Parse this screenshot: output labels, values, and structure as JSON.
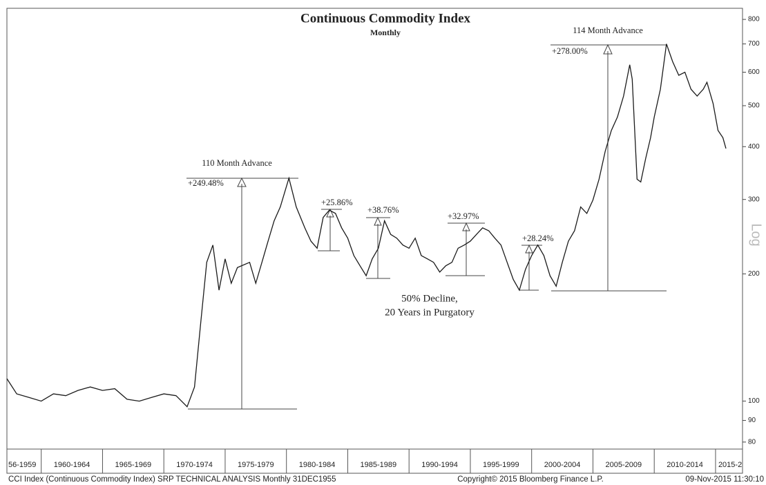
{
  "chart_data": {
    "type": "line",
    "title": "Continuous Commodity Index",
    "subtitle": "Monthly",
    "log_scale": true,
    "color": "#1a1a1a",
    "xlim": [
      1957.2,
      2017.2
    ],
    "xticks": [
      {
        "value": 1955,
        "label": "56-1959"
      },
      {
        "value": 1960,
        "label": "1960-1964"
      },
      {
        "value": 1965,
        "label": "1965-1969"
      },
      {
        "value": 1970,
        "label": "1970-1974"
      },
      {
        "value": 1975,
        "label": "1975-1979"
      },
      {
        "value": 1980,
        "label": "1980-1984"
      },
      {
        "value": 1985,
        "label": "1985-1989"
      },
      {
        "value": 1990,
        "label": "1990-1994"
      },
      {
        "value": 1995,
        "label": "1995-1999"
      },
      {
        "value": 2000,
        "label": "2000-2004"
      },
      {
        "value": 2005,
        "label": "2005-2009"
      },
      {
        "value": 2010,
        "label": "2010-2014"
      },
      {
        "value": 2015,
        "label": "2015-2"
      }
    ],
    "ylim": [
      77,
      850
    ],
    "yticks": [
      80,
      90,
      100,
      200,
      300,
      400,
      500,
      600,
      700,
      800
    ],
    "y_axis_label": "Log",
    "x": [
      1957.2,
      1958,
      1959,
      1960,
      1961,
      1962,
      1963,
      1964,
      1965,
      1966,
      1967,
      1968,
      1969,
      1970,
      1971,
      1971.9,
      1972.5,
      1973,
      1973.5,
      1974,
      1974.5,
      1975,
      1975.5,
      1976,
      1977,
      1977.5,
      1978,
      1978.5,
      1979,
      1979.5,
      1980.2,
      1980.8,
      1981.5,
      1982,
      1982.5,
      1983,
      1983.5,
      1984,
      1984.5,
      1985,
      1985.5,
      1986,
      1986.5,
      1987,
      1987.5,
      1988,
      1988.5,
      1989,
      1989.5,
      1990,
      1990.5,
      1991,
      1991.5,
      1992,
      1992.5,
      1993,
      1993.5,
      1994,
      1994.5,
      1995,
      1995.5,
      1996,
      1996.5,
      1997,
      1997.5,
      1998,
      1998.5,
      1999,
      1999.5,
      2000,
      2000.5,
      2001,
      2001.5,
      2002,
      2002.5,
      2003,
      2003.5,
      2004,
      2004.5,
      2005,
      2005.5,
      2006,
      2006.5,
      2007,
      2007.5,
      2008,
      2008.2,
      2008.6,
      2008.9,
      2009.3,
      2009.7,
      2010,
      2010.5,
      2011,
      2011.5,
      2012,
      2012.5,
      2013,
      2013.5,
      2014,
      2014.3,
      2014.8,
      2015.2,
      2015.6,
      2015.85
    ],
    "values": [
      113,
      104,
      102,
      100,
      104,
      103,
      106,
      108,
      106,
      107,
      101,
      100,
      102,
      104,
      103,
      97,
      108,
      152,
      213,
      234,
      183,
      217,
      190,
      207,
      213,
      190,
      213,
      239,
      267,
      288,
      337,
      288,
      257,
      239,
      230,
      272,
      283,
      278,
      257,
      243,
      221,
      209,
      198,
      217,
      230,
      267,
      248,
      243,
      234,
      230,
      243,
      221,
      217,
      213,
      202,
      209,
      213,
      230,
      234,
      239,
      248,
      257,
      253,
      243,
      234,
      213,
      194,
      183,
      205,
      221,
      234,
      221,
      198,
      187,
      213,
      239,
      253,
      288,
      278,
      299,
      335,
      390,
      437,
      470,
      527,
      625,
      578,
      335,
      330,
      375,
      420,
      470,
      547,
      700,
      636,
      590,
      600,
      547,
      527,
      547,
      568,
      506,
      437,
      420,
      396
    ],
    "annotations": [
      "110 Month Advance",
      "+249.48%",
      "+25.86%",
      "+38.76%",
      "+32.97%",
      "+28.24%",
      "114 Month Advance",
      "+278.00%",
      "50% Decline,",
      "20 Years in Purgatory"
    ],
    "footer": [
      "CCI Index (Continuous Commodity Index) SRP TECHNICAL ANALYSIS  Monthly 31DEC1955",
      "Copyright© 2015 Bloomberg Finance L.P.",
      "09-Nov-2015 11:30:10"
    ]
  }
}
